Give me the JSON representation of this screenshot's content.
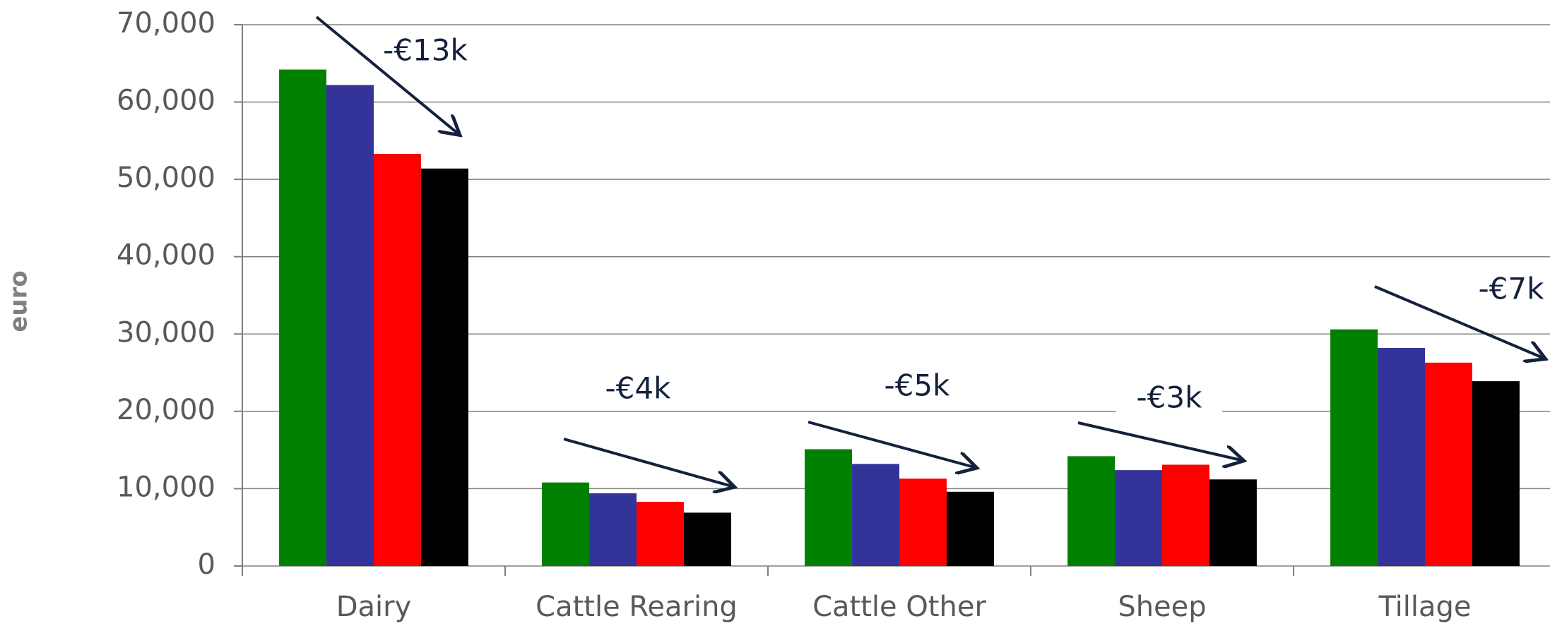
{
  "chart_data": {
    "type": "bar",
    "y_label": "euro",
    "categories": [
      "Dairy",
      "Cattle Rearing",
      "Cattle Other",
      "Sheep",
      "Tillage"
    ],
    "series": [
      {
        "color": "#008000",
        "values": [
          64200,
          10800,
          15100,
          14200,
          30600
        ]
      },
      {
        "color": "#333399",
        "values": [
          62200,
          9400,
          13200,
          12400,
          28200
        ]
      },
      {
        "color": "#ff0000",
        "values": [
          53300,
          8300,
          11300,
          13100,
          26300
        ]
      },
      {
        "color": "#000000",
        "values": [
          51400,
          6900,
          9600,
          11200,
          23900
        ]
      }
    ],
    "ylim": [
      0,
      70000
    ],
    "yticks": [
      0,
      {
        "value": 10000,
        "label": "10,000"
      },
      {
        "value": 20000,
        "label": "20,000"
      },
      {
        "value": 30000,
        "label": "30,000"
      },
      {
        "value": 40000,
        "label": "40,000"
      },
      {
        "value": 50000,
        "label": "50,000"
      },
      {
        "value": 60000,
        "label": "60,000"
      },
      {
        "value": 70000,
        "label": "70,000"
      }
    ],
    "grid": true,
    "annotations": [
      "-€13k",
      "-€4k",
      "-€5k",
      "-€3k",
      "-€7k"
    ]
  }
}
